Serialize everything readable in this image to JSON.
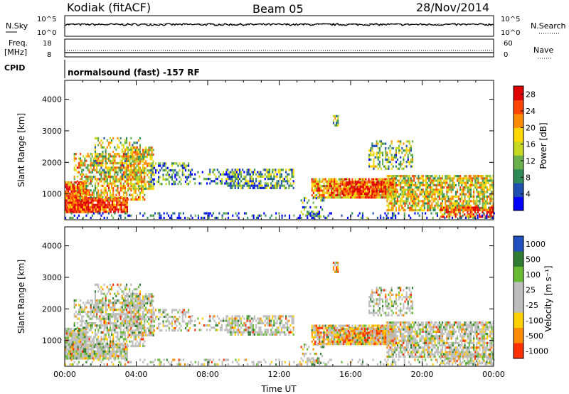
{
  "header": {
    "station": "Kodiak (fitACF)",
    "beam": "Beam 05",
    "date": "28/Nov/2014"
  },
  "top_panels": {
    "nsky_label": "N.Sky",
    "nsearch_label": "N.Search",
    "freq_label_1": "Freq.",
    "freq_label_2": "[MHz]",
    "nave_label": "Nave",
    "cpid_label": "CPID",
    "nsky_ticks": [
      "10^5",
      "10^0"
    ],
    "nsearch_ticks": [
      "10^5",
      "10^0"
    ],
    "freq_ticks": [
      "18",
      "8"
    ],
    "nave_ticks": [
      "60",
      "0"
    ],
    "cpid_text": "normalsound (fast) -157 RF"
  },
  "colors": {
    "power": [
      "#0000ff",
      "#1f4fb0",
      "#2e8b57",
      "#6ab04c",
      "#c8d820",
      "#ffd700",
      "#ff8c00",
      "#ff4500",
      "#e00000"
    ],
    "velocity": [
      "#2050c0",
      "#2e7d32",
      "#66bb33",
      "#bdbdbd",
      "#bdbdbd",
      "#ffd000",
      "#ff8c00",
      "#ff3000"
    ]
  },
  "chart_data": [
    {
      "type": "heatmap",
      "panel": "power",
      "ylabel": "Slant Range [km]",
      "x_ticks": [
        "00:00",
        "04:00",
        "08:00",
        "12:00",
        "16:00",
        "20:00",
        "00:00"
      ],
      "xlim_hours": [
        0,
        24
      ],
      "y_ticks": [
        1000,
        2000,
        3000,
        4000
      ],
      "ylim_km": [
        180,
        4600
      ],
      "colorbar": {
        "label": "Power [dB]",
        "ticks": [
          4,
          8,
          12,
          16,
          20,
          24,
          28
        ],
        "range": [
          0,
          30
        ]
      }
    },
    {
      "type": "heatmap",
      "panel": "velocity",
      "ylabel": "Slant Range [km]",
      "xlabel": "Time UT",
      "x_ticks": [
        "00:00",
        "04:00",
        "08:00",
        "12:00",
        "16:00",
        "20:00",
        "00:00"
      ],
      "xlim_hours": [
        0,
        24
      ],
      "y_ticks": [
        1000,
        2000,
        3000,
        4000
      ],
      "ylim_km": [
        180,
        4600
      ],
      "colorbar": {
        "label": "Velocity [m s⁻¹]",
        "ticks": [
          "1000",
          "500",
          "100",
          "25",
          "-25",
          "-100",
          "-500",
          "-1000"
        ]
      }
    }
  ]
}
